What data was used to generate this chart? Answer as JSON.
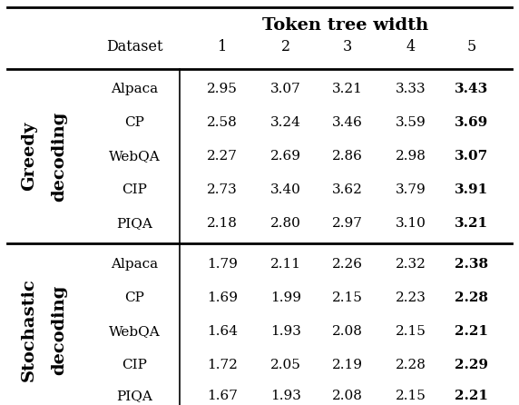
{
  "title": "Token tree width",
  "col_headers": [
    "1",
    "2",
    "3",
    "4",
    "5"
  ],
  "dataset_label": "Dataset",
  "section1_word1": "Greedy",
  "section1_word2": "decoding",
  "section2_word1": "Stochastic",
  "section2_word2": "decoding",
  "datasets": [
    "Alpaca",
    "CP",
    "WebQA",
    "CIP",
    "PIQA"
  ],
  "greedy": [
    [
      "2.95",
      "3.07",
      "3.21",
      "3.33",
      "3.43"
    ],
    [
      "2.58",
      "3.24",
      "3.46",
      "3.59",
      "3.69"
    ],
    [
      "2.27",
      "2.69",
      "2.86",
      "2.98",
      "3.07"
    ],
    [
      "2.73",
      "3.40",
      "3.62",
      "3.79",
      "3.91"
    ],
    [
      "2.18",
      "2.80",
      "2.97",
      "3.10",
      "3.21"
    ]
  ],
  "stochastic": [
    [
      "1.79",
      "2.11",
      "2.26",
      "2.32",
      "2.38"
    ],
    [
      "1.69",
      "1.99",
      "2.15",
      "2.23",
      "2.28"
    ],
    [
      "1.64",
      "1.93",
      "2.08",
      "2.15",
      "2.21"
    ],
    [
      "1.72",
      "2.05",
      "2.19",
      "2.28",
      "2.29"
    ],
    [
      "1.67",
      "1.93",
      "2.08",
      "2.15",
      "2.21"
    ]
  ],
  "bold_col": 4,
  "bg_color": "#ffffff",
  "text_color": "#000000",
  "font_size": 11.0,
  "title_font_size": 14.0,
  "header_font_size": 11.5,
  "section_font_size": 14.0
}
